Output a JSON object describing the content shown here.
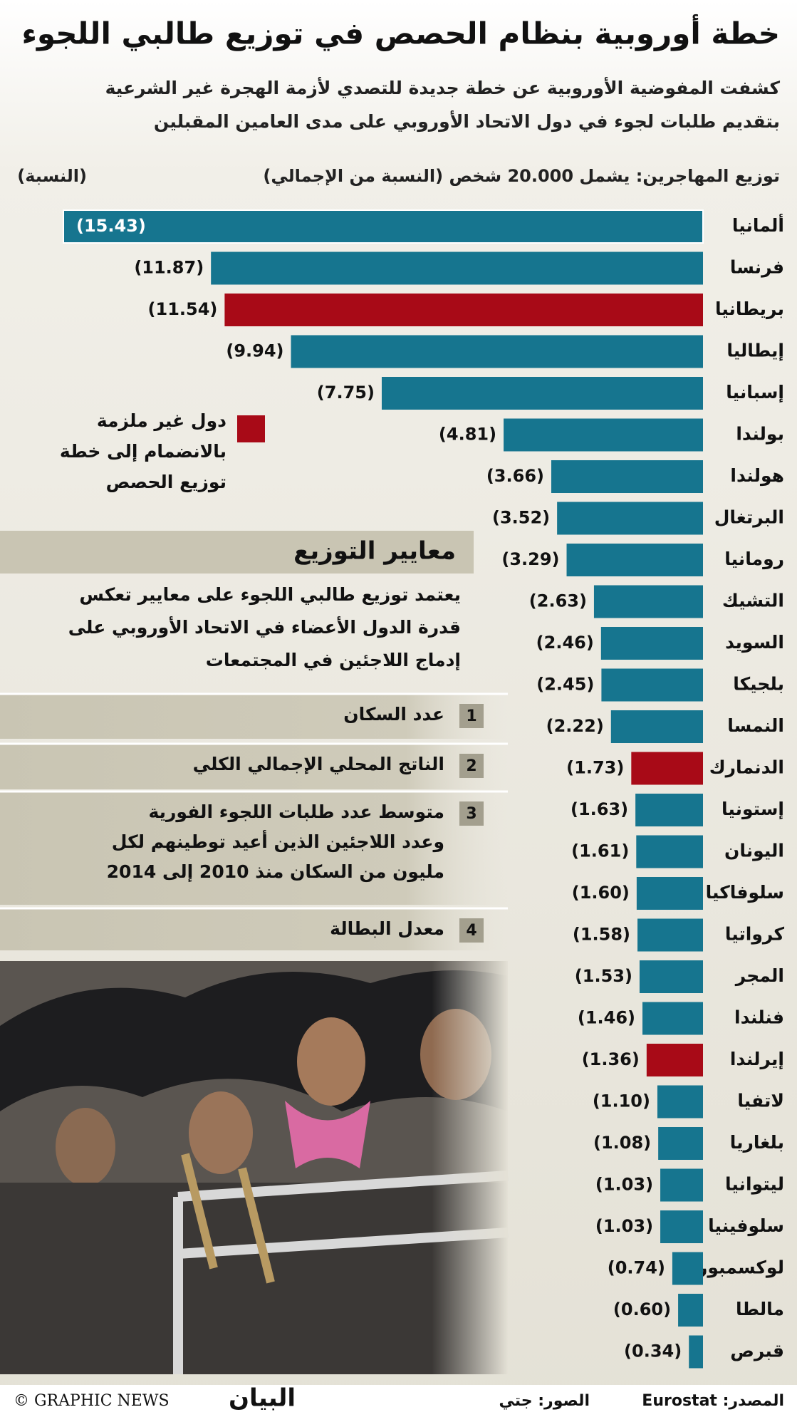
{
  "header": {
    "title": "خطة أوروبية بنظام الحصص في توزيع طالبي اللجوء",
    "subtitle": [
      "كشفت المفوضية الأوروبية عن خطة جديدة للتصدي لأزمة الهجرة غير الشرعية",
      "بتقديم طلبات لجوء في دول الاتحاد الأوروبي على مدى العامين المقبلين"
    ]
  },
  "chart_data": {
    "type": "bar",
    "orientation": "horizontal",
    "title": "توزيع المهاجرين: يشمل 20.000 شخص (النسبة من الإجمالي)",
    "value_label_heading": "(النسبة)",
    "categories": [
      "ألمانيا",
      "فرنسا",
      "بريطانيا",
      "إيطاليا",
      "إسبانيا",
      "بولندا",
      "هولندا",
      "البرتغال",
      "رومانيا",
      "التشيك",
      "السويد",
      "بلجيكا",
      "النمسا",
      "الدنمارك",
      "إستونيا",
      "اليونان",
      "سلوفاكيا",
      "كرواتيا",
      "المجر",
      "فنلندا",
      "إيرلندا",
      "لاتفيا",
      "بلغاريا",
      "ليتوانيا",
      "سلوفينيا",
      "لوكسمبورغ",
      "مالطا",
      "قبرص"
    ],
    "values": [
      15.43,
      11.87,
      11.54,
      9.94,
      7.75,
      4.81,
      3.66,
      3.52,
      3.29,
      2.63,
      2.46,
      2.45,
      2.22,
      1.73,
      1.63,
      1.61,
      1.6,
      1.58,
      1.53,
      1.46,
      1.36,
      1.1,
      1.08,
      1.03,
      1.03,
      0.74,
      0.6,
      0.34
    ],
    "value_labels": [
      "(15.43)",
      "(11.87)",
      "(11.54)",
      "(9.94)",
      "(7.75)",
      "(4.81)",
      "(3.66)",
      "(3.52)",
      "(3.29)",
      "(2.63)",
      "(2.46)",
      "(2.45)",
      "(2.22)",
      "(1.73)",
      "(1.63)",
      "(1.61)",
      "(1.60)",
      "(1.58)",
      "(1.53)",
      "(1.46)",
      "(1.36)",
      "(1.10)",
      "(1.08)",
      "(1.03)",
      "(1.03)",
      "(0.74)",
      "(0.60)",
      "(0.34)"
    ],
    "colors": [
      "#16758f",
      "#16758f",
      "#a80a17",
      "#16758f",
      "#16758f",
      "#16758f",
      "#16758f",
      "#16758f",
      "#16758f",
      "#16758f",
      "#16758f",
      "#16758f",
      "#16758f",
      "#a80a17",
      "#16758f",
      "#16758f",
      "#16758f",
      "#16758f",
      "#16758f",
      "#16758f",
      "#a80a17",
      "#16758f",
      "#16758f",
      "#16758f",
      "#16758f",
      "#16758f",
      "#16758f",
      "#16758f"
    ],
    "legend": {
      "color": "#a80a17",
      "label": [
        "دول غير ملزمة",
        "بالانضمام إلى خطة",
        "توزيع الحصص"
      ]
    }
  },
  "criteria": {
    "title": "معايير التوزيع",
    "description": [
      "يعتمد توزيع طالبي اللجوء على معايير تعكس",
      "قدرة الدول الأعضاء في الاتحاد الأوروبي على",
      "إدماج اللاجئين في المجتمعات"
    ],
    "items": [
      {
        "number": "1",
        "text": [
          "عدد السكان"
        ]
      },
      {
        "number": "2",
        "text": [
          "الناتج المحلي الإجمالي الكلي"
        ]
      },
      {
        "number": "3",
        "text": [
          "متوسط عدد طلبات اللجوء الفورية",
          "وعدد اللاجئين الذين أعيد توطينهم لكل",
          "مليون من السكان منذ 2010 إلى 2014"
        ]
      },
      {
        "number": "4",
        "text": [
          "معدل البطالة"
        ]
      }
    ]
  },
  "footer": {
    "source": "المصدر: Eurostat",
    "photos": "الصور: جتي",
    "logo": "البيان",
    "credit": "© GRAPHIC NEWS"
  }
}
